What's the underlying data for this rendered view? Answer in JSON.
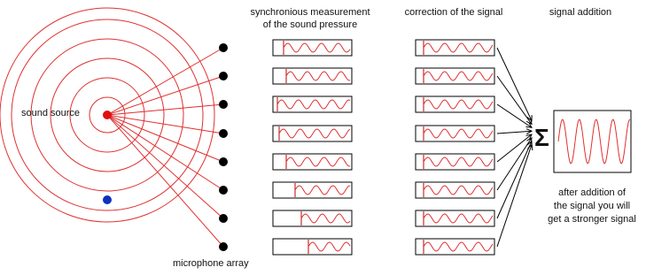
{
  "headings": {
    "measurement": [
      "synchronious measurement",
      "of the sound pressure"
    ],
    "correction": "correction of the signal",
    "addition": "signal addition"
  },
  "labels": {
    "source": "sound source",
    "array": "microphone array",
    "sum": "Σ",
    "result": [
      "after addition of",
      "the signal you will",
      "get a stronger signal"
    ]
  }
}
